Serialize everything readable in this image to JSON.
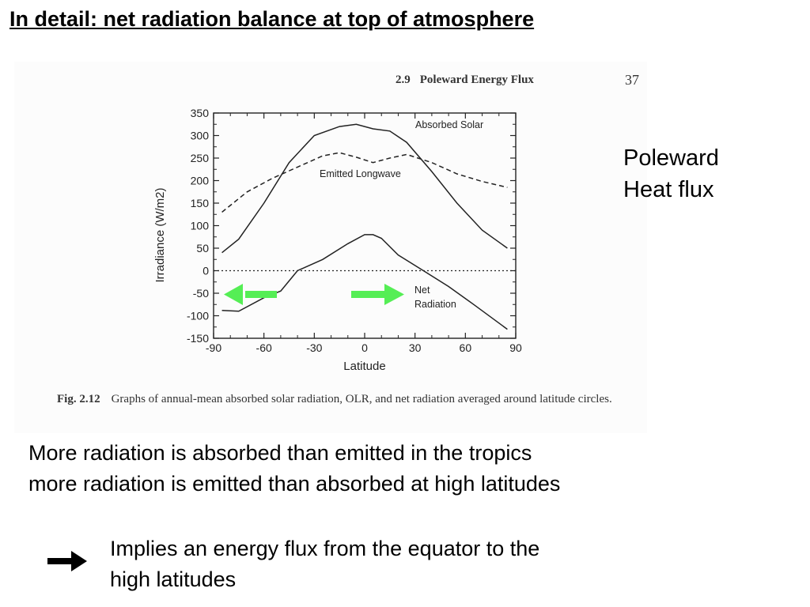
{
  "slide": {
    "title": "In detail: net radiation balance at top of atmosphere"
  },
  "book": {
    "section_number": "2.9",
    "section_title": "Poleward Energy Flux",
    "page_number": "37"
  },
  "figure": {
    "label": "Fig. 2.12",
    "caption": "Graphs of annual-mean absorbed solar radiation, OLR, and net radiation averaged around latitude circles."
  },
  "side_note": {
    "lines": [
      "Poleward",
      "Heat flux"
    ]
  },
  "body": {
    "lines": [
      "More radiation is absorbed than emitted in the tropics",
      "more radiation is emitted than absorbed at high latitudes"
    ]
  },
  "implication": {
    "lines": [
      "Implies an energy flux from the equator to the",
      "high latitudes"
    ]
  },
  "colors": {
    "arrow_green": "#55ee55",
    "ink": "#000000"
  },
  "chart_data": {
    "type": "line",
    "xlabel": "Latitude",
    "ylabel": "Irradiance (W/m2)",
    "xlim": [
      -90,
      90
    ],
    "ylim": [
      -150,
      350
    ],
    "xticks": [
      -90,
      -60,
      -30,
      0,
      30,
      60,
      90
    ],
    "yticks": [
      350,
      300,
      250,
      200,
      150,
      100,
      50,
      0,
      -50,
      -100,
      -150
    ],
    "series": [
      {
        "name": "Absorbed Solar",
        "style": "solid",
        "x": [
          -85,
          -75,
          -60,
          -45,
          -30,
          -15,
          -5,
          5,
          15,
          25,
          40,
          55,
          70,
          85
        ],
        "y": [
          40,
          70,
          150,
          240,
          300,
          320,
          325,
          315,
          310,
          285,
          220,
          150,
          90,
          50
        ]
      },
      {
        "name": "Emitted Longwave",
        "style": "dashed",
        "x": [
          -85,
          -70,
          -55,
          -40,
          -25,
          -15,
          -5,
          5,
          15,
          25,
          40,
          55,
          70,
          85
        ],
        "y": [
          130,
          175,
          205,
          230,
          255,
          262,
          252,
          240,
          250,
          258,
          240,
          215,
          198,
          185
        ]
      },
      {
        "name": "Net Radiation",
        "style": "solid",
        "x": [
          -85,
          -75,
          -60,
          -50,
          -40,
          -25,
          -10,
          0,
          5,
          10,
          20,
          35,
          50,
          65,
          85
        ],
        "y": [
          -88,
          -90,
          -60,
          -45,
          0,
          25,
          60,
          80,
          80,
          72,
          35,
          0,
          -35,
          -75,
          -130
        ]
      },
      {
        "name": "",
        "style": "dotted",
        "x": [
          -90,
          90
        ],
        "y": [
          0,
          0
        ]
      }
    ],
    "annotations": [
      {
        "text": "Absorbed Solar"
      },
      {
        "text": "Emitted Longwave"
      },
      {
        "text": "Net"
      },
      {
        "text": "Radiation"
      }
    ],
    "arrows": [
      {
        "direction": "left",
        "color": "#55ee55"
      },
      {
        "direction": "right",
        "color": "#55ee55"
      }
    ],
    "grid": false,
    "legend": "none"
  }
}
